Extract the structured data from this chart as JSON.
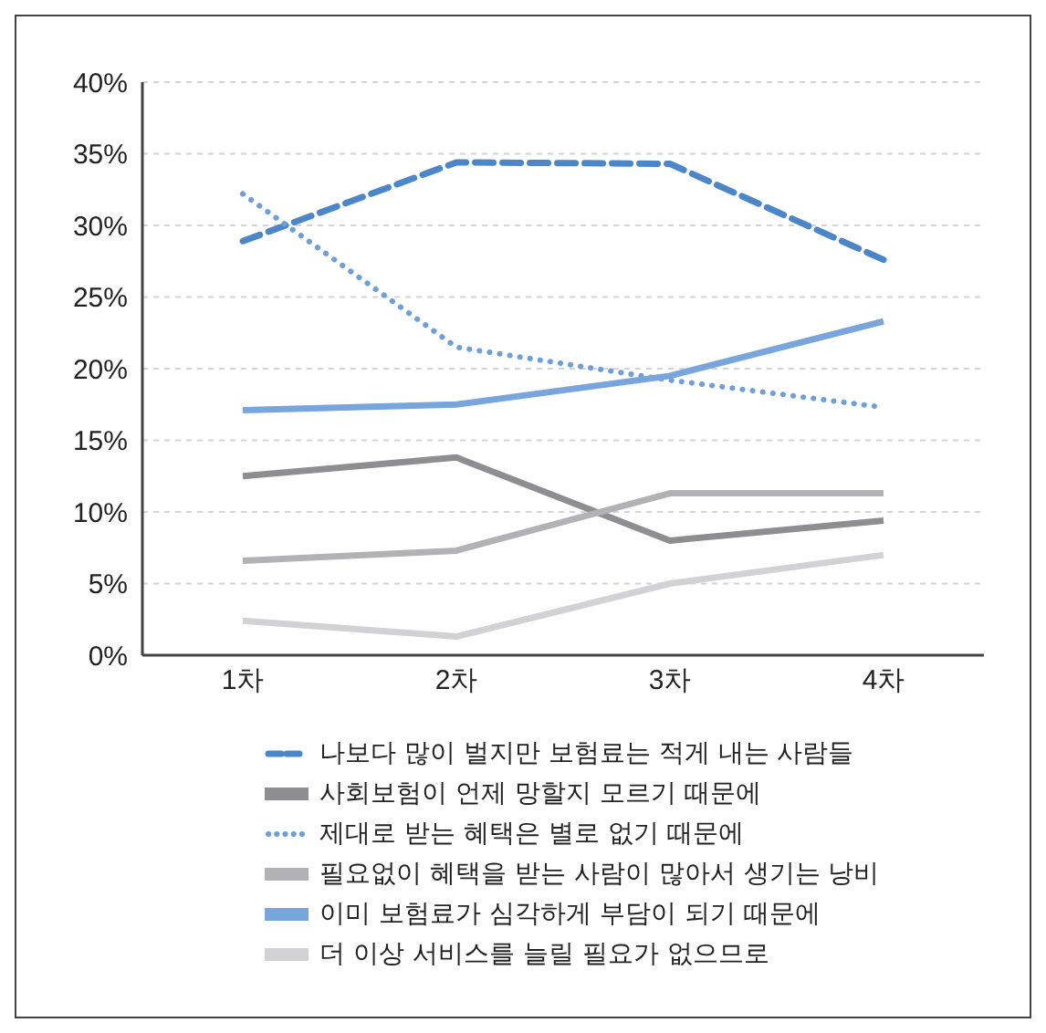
{
  "chart_data": {
    "type": "line",
    "categories": [
      "1차",
      "2차",
      "3차",
      "4차"
    ],
    "series": [
      {
        "name": "나보다 많이 벌지만 보험료는 적게 내는 사람들",
        "color": "#4a86c8",
        "line_style": "dashed",
        "values": [
          28.9,
          34.4,
          34.3,
          27.6
        ]
      },
      {
        "name": "사회보험이 언제 망할지 모르기 때문에",
        "color": "#8e8e90",
        "line_style": "solid",
        "values": [
          12.5,
          13.8,
          8.0,
          9.4
        ]
      },
      {
        "name": "제대로 받는 혜택은 별로 없기 때문에",
        "color": "#6f9fd8",
        "line_style": "dotted",
        "values": [
          32.2,
          21.5,
          19.2,
          17.3
        ]
      },
      {
        "name": "필요없이 혜택을 받는 사람이 많아서 생기는 낭비",
        "color": "#b2b2b4",
        "line_style": "solid",
        "values": [
          6.6,
          7.3,
          11.3,
          11.3
        ]
      },
      {
        "name": "이미 보험료가 심각하게 부담이 되기 때문에",
        "color": "#78a5dc",
        "line_style": "solid",
        "values": [
          17.1,
          17.5,
          19.5,
          23.3
        ]
      },
      {
        "name": "더 이상 서비스를 늘릴 필요가 없으므로",
        "color": "#d2d2d4",
        "line_style": "solid",
        "values": [
          2.4,
          1.3,
          5.0,
          7.0
        ]
      }
    ],
    "ylim": [
      0,
      40
    ],
    "yticks": [
      {
        "value": 0,
        "label": "0%"
      },
      {
        "value": 5,
        "label": "5%"
      },
      {
        "value": 10,
        "label": "10%"
      },
      {
        "value": 15,
        "label": "15%"
      },
      {
        "value": 20,
        "label": "20%"
      },
      {
        "value": 25,
        "label": "25%"
      },
      {
        "value": 30,
        "label": "30%"
      },
      {
        "value": 35,
        "label": "35%"
      },
      {
        "value": 40,
        "label": "40%"
      }
    ],
    "grid": "y",
    "legend": "bottom"
  }
}
